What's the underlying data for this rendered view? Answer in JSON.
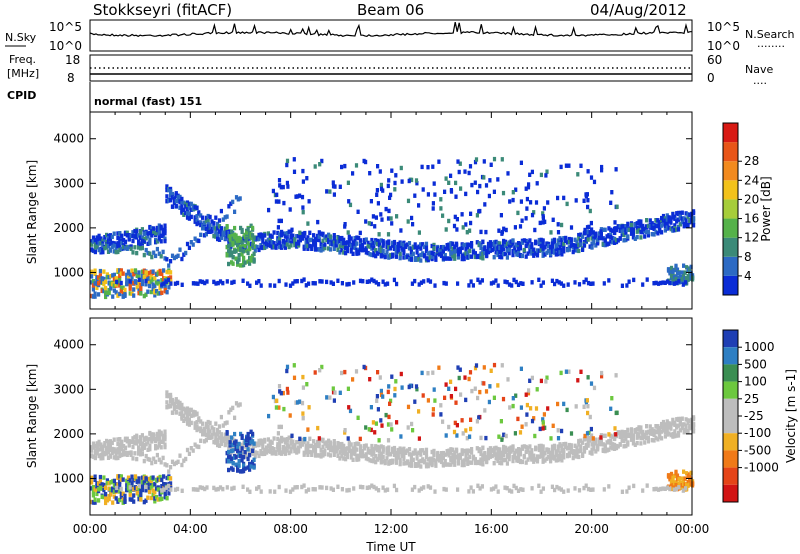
{
  "header": {
    "station": "Stokkseyri (fitACF)",
    "beam": "Beam 06",
    "date": "04/Aug/2012"
  },
  "noise_panel": {
    "left_label": "N.Sky",
    "right_label": "N.Search",
    "right_legend_marker": "........",
    "left_ticks": [
      "10^5",
      "10^0"
    ],
    "right_ticks": [
      "10^5",
      "10^0"
    ]
  },
  "freq_panel": {
    "left_label_line1": "Freq.",
    "left_label_line2": "[MHz]",
    "right_label": "Nave",
    "right_legend_marker": "....",
    "left_ticks": [
      "18",
      "8"
    ],
    "right_ticks": [
      "60",
      "0"
    ]
  },
  "cpid_panel": {
    "label": "CPID",
    "value": "normal (fast) 151"
  },
  "chart_data": [
    {
      "type": "heatmap",
      "name": "power",
      "ylabel": "Slant Range [km]",
      "ylim": [
        180,
        4600
      ],
      "yticks": [
        1000,
        2000,
        3000,
        4000
      ],
      "x_ticks": [
        "00:00",
        "04:00",
        "08:00",
        "12:00",
        "16:00",
        "20:00",
        "00:00"
      ],
      "x_tick_hours": [
        0,
        4,
        8,
        12,
        16,
        20,
        24
      ],
      "colorbar": {
        "label": "Power [dB]",
        "ticks": [
          "4",
          "8",
          "12",
          "16",
          "20",
          "24",
          "28"
        ],
        "colors": [
          "#0a2cd6",
          "#2c6ac4",
          "#3b8a78",
          "#55b24a",
          "#a6cd3a",
          "#f2c21b",
          "#f28a1e",
          "#e85518",
          "#d81a14"
        ]
      }
    },
    {
      "type": "heatmap",
      "name": "velocity",
      "ylabel": "Slant Range [km]",
      "xlabel": "Time UT",
      "ylim": [
        180,
        4600
      ],
      "yticks": [
        1000,
        2000,
        3000,
        4000
      ],
      "x_ticks": [
        "00:00",
        "04:00",
        "08:00",
        "12:00",
        "16:00",
        "20:00",
        "00:00"
      ],
      "x_tick_hours": [
        0,
        4,
        8,
        12,
        16,
        20,
        24
      ],
      "colorbar": {
        "label": "Velocity [m s-1]",
        "ticks": [
          "1000",
          "500",
          "100",
          "25",
          "-25",
          "-100",
          "-500",
          "-1000"
        ],
        "colors": [
          "#1f3fb4",
          "#2e7fc3",
          "#3a8e52",
          "#6cc83e",
          "#bdbdbd",
          "#bdbdbd",
          "#f0b024",
          "#f07a18",
          "#e54418",
          "#d21414"
        ]
      }
    }
  ]
}
